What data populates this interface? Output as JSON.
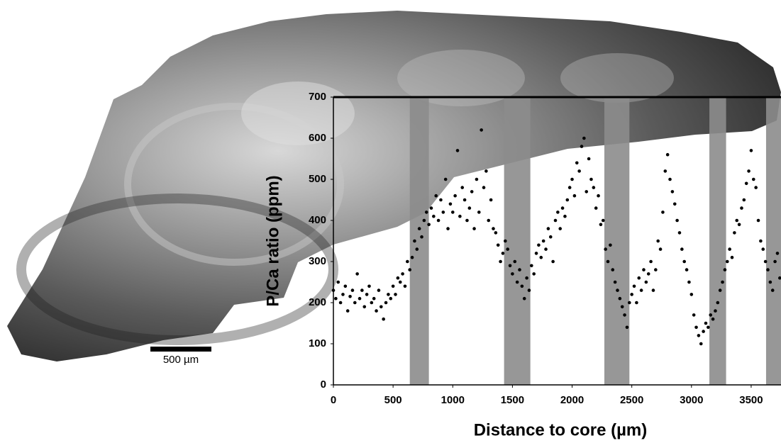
{
  "chart_data": {
    "type": "scatter",
    "x_label": "Distance to core (µm)",
    "y_label": "P/Ca ratio (ppm)",
    "annotations": [
      "500 µm"
    ],
    "xlim": [
      0,
      3750
    ],
    "ylim": [
      0,
      700
    ],
    "xticks": [
      0,
      500,
      1000,
      1500,
      2000,
      2500,
      3000,
      3500
    ],
    "yticks": [
      0,
      100,
      200,
      300,
      400,
      500,
      600,
      700
    ],
    "color": "#000000",
    "band_color": "#8c8c8c",
    "shaded_bands": [
      [
        640,
        800
      ],
      [
        1430,
        1650
      ],
      [
        2270,
        2480
      ],
      [
        3150,
        3290
      ],
      [
        3625,
        3750
      ]
    ],
    "x": [
      0,
      20,
      40,
      60,
      80,
      100,
      120,
      140,
      160,
      180,
      200,
      220,
      240,
      260,
      280,
      300,
      320,
      340,
      360,
      380,
      400,
      420,
      440,
      460,
      480,
      500,
      520,
      540,
      560,
      580,
      600,
      620,
      640,
      660,
      680,
      700,
      720,
      740,
      760,
      780,
      800,
      820,
      840,
      860,
      880,
      900,
      920,
      940,
      960,
      980,
      1000,
      1020,
      1040,
      1060,
      1080,
      1100,
      1120,
      1140,
      1160,
      1180,
      1200,
      1220,
      1240,
      1260,
      1280,
      1300,
      1320,
      1340,
      1360,
      1380,
      1400,
      1420,
      1440,
      1460,
      1480,
      1500,
      1520,
      1540,
      1560,
      1580,
      1600,
      1620,
      1640,
      1660,
      1680,
      1700,
      1720,
      1740,
      1760,
      1780,
      1800,
      1820,
      1840,
      1860,
      1880,
      1900,
      1920,
      1940,
      1960,
      1980,
      2000,
      2020,
      2040,
      2060,
      2080,
      2100,
      2120,
      2140,
      2160,
      2180,
      2200,
      2220,
      2240,
      2260,
      2280,
      2300,
      2320,
      2340,
      2360,
      2380,
      2400,
      2420,
      2440,
      2460,
      2480,
      2500,
      2520,
      2540,
      2560,
      2580,
      2600,
      2620,
      2640,
      2660,
      2680,
      2700,
      2720,
      2740,
      2760,
      2780,
      2800,
      2820,
      2840,
      2860,
      2880,
      2900,
      2920,
      2940,
      2960,
      2980,
      3000,
      3020,
      3040,
      3060,
      3080,
      3100,
      3120,
      3140,
      3160,
      3180,
      3200,
      3220,
      3240,
      3260,
      3280,
      3300,
      3320,
      3340,
      3360,
      3380,
      3400,
      3420,
      3440,
      3460,
      3480,
      3500,
      3520,
      3540,
      3560,
      3580,
      3600,
      3620,
      3640,
      3660,
      3680,
      3700,
      3720,
      3740
    ],
    "values": [
      230,
      210,
      250,
      200,
      220,
      240,
      180,
      215,
      230,
      200,
      270,
      210,
      230,
      190,
      220,
      240,
      200,
      210,
      180,
      230,
      190,
      160,
      200,
      220,
      210,
      240,
      220,
      260,
      250,
      270,
      240,
      300,
      280,
      310,
      350,
      330,
      380,
      360,
      400,
      420,
      390,
      430,
      410,
      460,
      400,
      450,
      420,
      500,
      380,
      440,
      420,
      460,
      570,
      410,
      480,
      450,
      400,
      430,
      470,
      380,
      500,
      420,
      620,
      480,
      520,
      400,
      450,
      380,
      370,
      340,
      300,
      320,
      350,
      330,
      290,
      270,
      300,
      250,
      280,
      240,
      210,
      260,
      230,
      290,
      270,
      320,
      340,
      310,
      350,
      330,
      380,
      360,
      300,
      400,
      420,
      380,
      430,
      410,
      450,
      480,
      500,
      460,
      540,
      520,
      580,
      600,
      470,
      550,
      500,
      480,
      430,
      460,
      390,
      400,
      330,
      300,
      340,
      280,
      250,
      230,
      210,
      190,
      170,
      140,
      200,
      220,
      240,
      200,
      260,
      230,
      280,
      250,
      270,
      300,
      230,
      280,
      350,
      330,
      420,
      520,
      560,
      500,
      470,
      440,
      400,
      370,
      330,
      300,
      280,
      250,
      220,
      170,
      140,
      120,
      100,
      130,
      150,
      140,
      170,
      160,
      180,
      200,
      230,
      250,
      280,
      300,
      330,
      310,
      370,
      400,
      390,
      430,
      450,
      490,
      520,
      570,
      500,
      480,
      400,
      350,
      330,
      300,
      280,
      250,
      230,
      300,
      320,
      260
    ]
  }
}
